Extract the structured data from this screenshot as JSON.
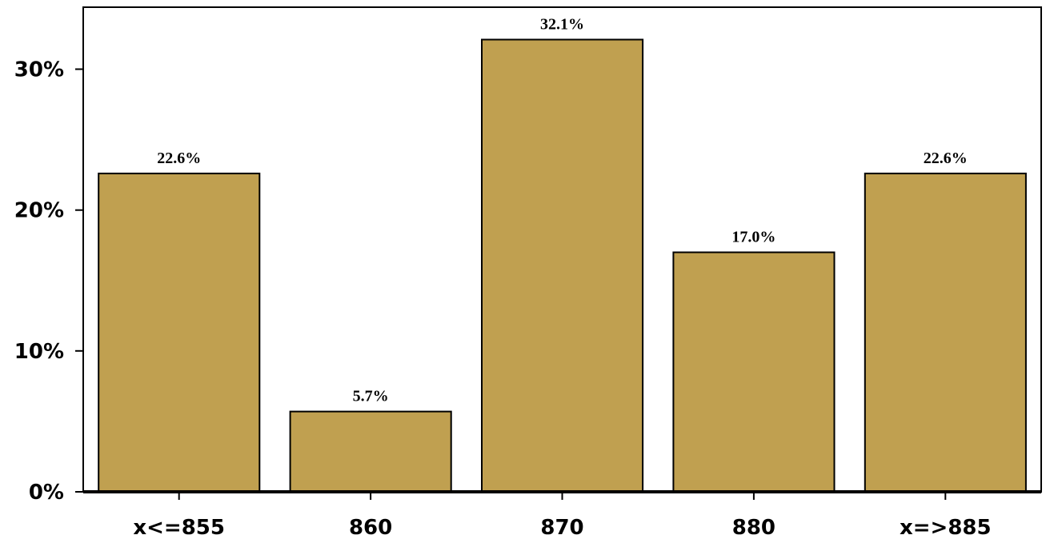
{
  "chart_data": {
    "type": "bar",
    "categories": [
      "x<=855",
      "860",
      "870",
      "880",
      "x=>885"
    ],
    "values": [
      22.6,
      5.7,
      32.1,
      17.0,
      22.6
    ],
    "data_labels": [
      "22.6%",
      "5.7%",
      "32.1%",
      "17.0%",
      "22.6%"
    ],
    "title": "",
    "xlabel": "",
    "ylabel": "",
    "ylim": [
      0,
      34.4
    ],
    "yticks": [
      0,
      10,
      20,
      30
    ],
    "ytick_labels": [
      "0%",
      "10%",
      "20%",
      "30%"
    ],
    "grid": false,
    "legend": "none",
    "bar_color": "#c0a050",
    "bar_edge_color": "#000000"
  }
}
